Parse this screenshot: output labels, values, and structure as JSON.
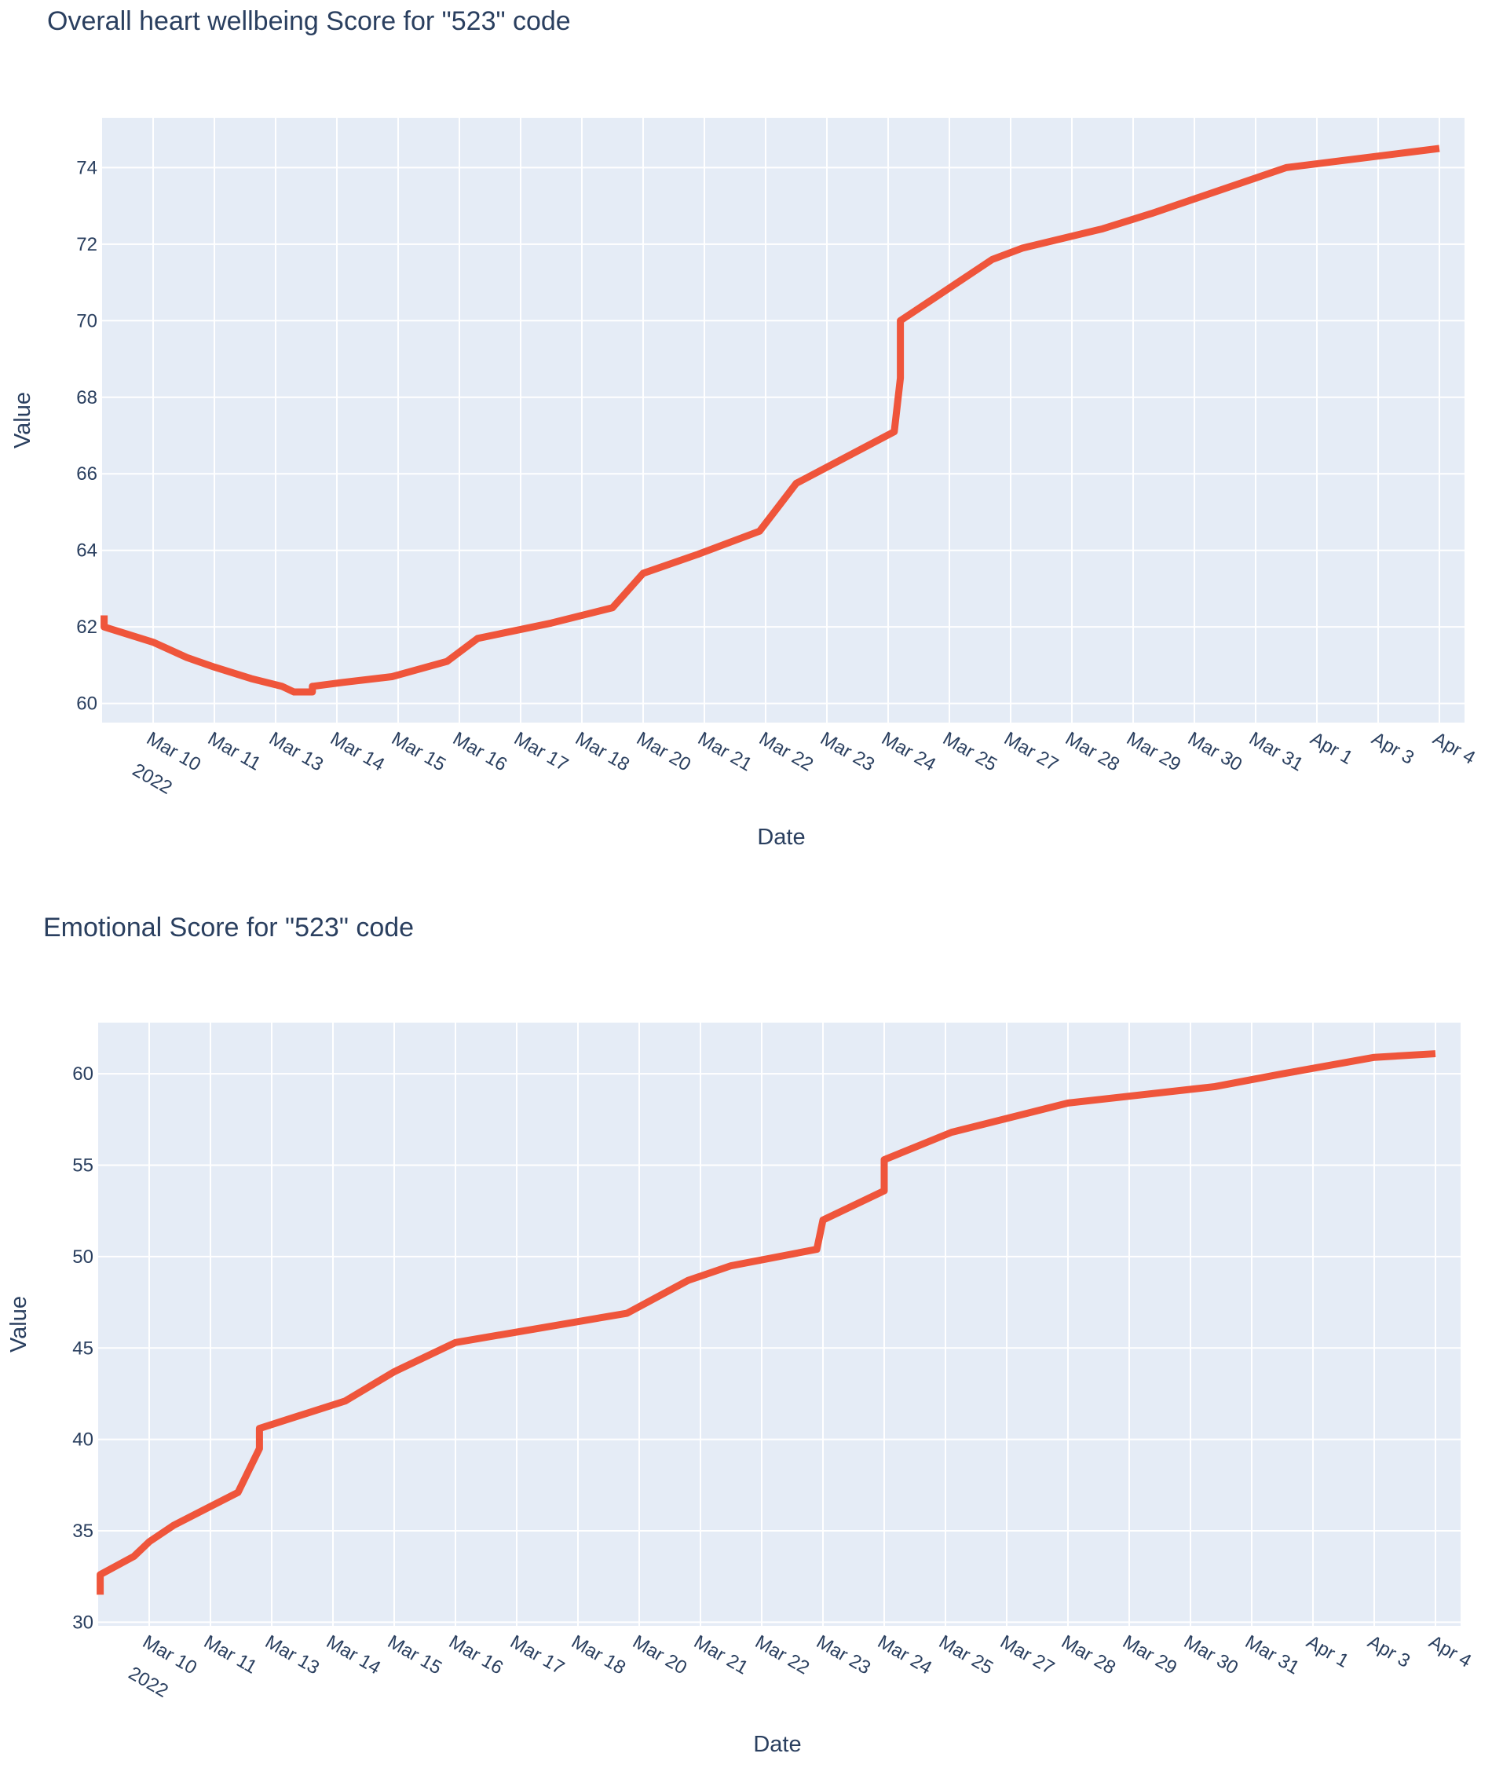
{
  "chart_data": [
    {
      "type": "line",
      "title": "Overall heart wellbeing Score for \"523\" code",
      "xlabel": "Date",
      "ylabel": "Value",
      "ylim": [
        59.5,
        75.3
      ],
      "yticks": [
        60,
        62,
        64,
        66,
        68,
        70,
        72,
        74
      ],
      "grid": true,
      "legend": "none",
      "line_color": "#ef553b",
      "plot_bg": "#e5ecf6",
      "xticks": [
        "Mar 10",
        "Mar 11",
        "Mar 13",
        "Mar 14",
        "Mar 15",
        "Mar 16",
        "Mar 17",
        "Mar 18",
        "Mar 20",
        "Mar 21",
        "Mar 22",
        "Mar 23",
        "Mar 24",
        "Mar 25",
        "Mar 27",
        "Mar 28",
        "Mar 29",
        "Mar 30",
        "Mar 31",
        "Apr 1",
        "Apr 3",
        "Apr 4"
      ],
      "year_label": "2022",
      "series": [
        {
          "x": [
            -0.8,
            -0.8,
            0,
            0.55,
            1,
            1.6,
            2.1,
            2.3,
            2.6,
            2.6,
            2.62,
            3.1,
            3.9,
            4.8,
            5.3,
            6.5,
            7.5,
            8.0,
            8.9,
            9.9,
            10.5,
            12.1,
            12.2,
            12.2,
            13.7,
            14.2,
            15.5,
            16.3,
            17.4,
            18.5,
            20.5,
            21.0
          ],
          "y": [
            62.3,
            62.0,
            61.6,
            61.2,
            60.95,
            60.65,
            60.45,
            60.3,
            60.3,
            60.45,
            60.45,
            60.55,
            60.7,
            61.1,
            61.7,
            62.1,
            62.5,
            63.4,
            63.9,
            64.5,
            65.75,
            67.1,
            68.5,
            70.0,
            71.6,
            71.9,
            72.4,
            72.8,
            73.4,
            74.0,
            74.4,
            74.5
          ]
        }
      ]
    },
    {
      "type": "line",
      "title": "Emotional Score for \"523\" code",
      "xlabel": "Date",
      "ylabel": "Value",
      "ylim": [
        29.8,
        62.8
      ],
      "yticks": [
        30,
        35,
        40,
        45,
        50,
        55,
        60
      ],
      "grid": true,
      "legend": "none",
      "line_color": "#ef553b",
      "plot_bg": "#e5ecf6",
      "xticks": [
        "Mar 10",
        "Mar 11",
        "Mar 13",
        "Mar 14",
        "Mar 15",
        "Mar 16",
        "Mar 17",
        "Mar 18",
        "Mar 20",
        "Mar 21",
        "Mar 22",
        "Mar 23",
        "Mar 24",
        "Mar 25",
        "Mar 27",
        "Mar 28",
        "Mar 29",
        "Mar 30",
        "Mar 31",
        "Apr 1",
        "Apr 3",
        "Apr 4"
      ],
      "year_label": "2022",
      "series": [
        {
          "x": [
            -0.8,
            -0.8,
            -0.25,
            0,
            0.4,
            1.45,
            1.8,
            1.8,
            3.2,
            4.0,
            5.0,
            7.8,
            8.8,
            9.5,
            10.9,
            11.0,
            12.0,
            12.0,
            13.1,
            15.0,
            17.4,
            18.5,
            19.5,
            20.0,
            21.0
          ],
          "y": [
            31.5,
            32.6,
            33.6,
            34.4,
            35.3,
            37.1,
            39.5,
            40.6,
            42.1,
            43.7,
            45.3,
            46.9,
            48.7,
            49.5,
            50.4,
            52.0,
            53.6,
            55.3,
            56.8,
            58.4,
            59.3,
            60.0,
            60.6,
            60.9,
            61.1
          ]
        }
      ]
    }
  ]
}
